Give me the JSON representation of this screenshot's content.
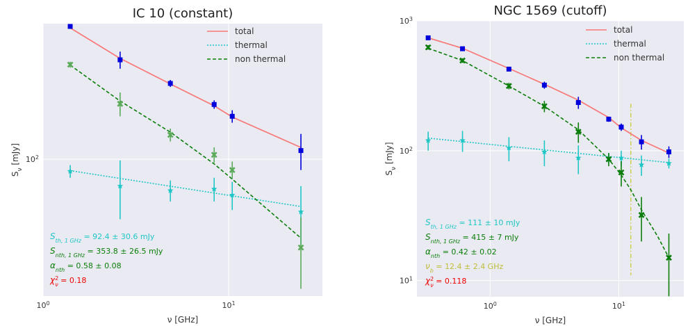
{
  "colors": {
    "panel_bg": "#eaeaf2",
    "grid": "#ffffff",
    "total": "#f87878",
    "thermal": "#1fc6c6",
    "nonthermal": "#0a7d0a",
    "nonthermal_light": "#5aaa5a",
    "total_points": "#0000dd",
    "break": "#cccc44",
    "chi": "#ee0000"
  },
  "chart_data": [
    {
      "type": "scatter",
      "title": "IC 10 (constant)",
      "xlabel": "ν [GHz]",
      "ylabel": "S",
      "ylabel_sub": "ν",
      "ylabel_unit": " [mJy]",
      "xscale": "log",
      "yscale": "log",
      "xlim": [
        1.0,
        32
      ],
      "ylim": [
        30,
        330
      ],
      "x_ticks": [
        {
          "v": 1,
          "base": "10",
          "exp": "0"
        },
        {
          "v": 10,
          "base": "10",
          "exp": "1"
        }
      ],
      "y_ticks": [
        {
          "v": 100,
          "base": "10",
          "exp": "2"
        }
      ],
      "grid": true,
      "legend": {
        "position": "top-right",
        "entries": [
          "total",
          "thermal",
          "non thermal"
        ]
      },
      "series": [
        {
          "name": "total",
          "kind": "line",
          "x": [
            1.4,
            2.6,
            4.85,
            8.35,
            10.45,
            24.5
          ],
          "y": [
            318,
            243,
            194,
            160,
            145,
            111
          ]
        },
        {
          "name": "thermal",
          "kind": "line",
          "x": [
            1.4,
            24.5
          ],
          "y": [
            90.5,
            66.0
          ]
        },
        {
          "name": "non thermal",
          "kind": "line",
          "x": [
            1.4,
            2.6,
            4.85,
            8.35,
            10.45,
            24.5
          ],
          "y": [
            229,
            167,
            127,
            96,
            84,
            50
          ]
        },
        {
          "name": "total points",
          "kind": "points",
          "x": [
            1.4,
            2.6,
            4.85,
            8.35,
            10.45,
            24.5
          ],
          "y": [
            322,
            240,
            195,
            162,
            146,
            108
          ],
          "err": [
            6,
            18,
            6,
            6,
            8,
            17
          ]
        },
        {
          "name": "thermal points",
          "kind": "points",
          "x": [
            1.4,
            2.6,
            4.85,
            8.35,
            10.45,
            24.5
          ],
          "y": [
            90,
            79,
            76,
            77,
            73,
            63
          ],
          "err": [
            5,
            20,
            7,
            8,
            9,
            16
          ]
        },
        {
          "name": "non thermal points",
          "kind": "points",
          "x": [
            1.4,
            2.6,
            4.85,
            8.35,
            10.45,
            24.5
          ],
          "y": [
            230,
            163,
            124,
            104,
            91,
            46
          ],
          "err": [
            6,
            17,
            7,
            7,
            7,
            14
          ]
        }
      ],
      "annotations": [
        {
          "sym": "S",
          "sub": "th, 1 GHz",
          "text": " = 92.4 ± 30.6 mJy",
          "color": "#1fc6c6"
        },
        {
          "sym": "S",
          "sub": "nth, 1 GHz",
          "text": " = 353.8 ± 26.5 mJy",
          "color": "#0a7d0a"
        },
        {
          "sym": "α",
          "sub": "nth",
          "text": " = 0.58 ± 0.08",
          "color": "#0a7d0a"
        },
        {
          "sym": "χ",
          "sup": "2",
          "sub": "ν",
          "text": " = 0.18",
          "color": "#ee0000"
        }
      ]
    },
    {
      "type": "scatter",
      "title": "NGC 1569 (cutoff)",
      "xlabel": "ν [GHz]",
      "ylabel": "S",
      "ylabel_sub": "ν",
      "ylabel_unit": " [mJy]",
      "xscale": "log",
      "yscale": "log",
      "xlim": [
        0.27,
        32
      ],
      "ylim": [
        7.5,
        1000
      ],
      "x_ticks": [
        {
          "v": 1,
          "base": "10",
          "exp": "0"
        },
        {
          "v": 10,
          "base": "10",
          "exp": "1"
        }
      ],
      "y_ticks": [
        {
          "v": 10,
          "base": "10",
          "exp": "1"
        },
        {
          "v": 100,
          "base": "10",
          "exp": "2"
        },
        {
          "v": 1000,
          "base": "10",
          "exp": "3"
        }
      ],
      "grid": true,
      "legend": {
        "position": "top-right",
        "entries": [
          "total",
          "thermal",
          "non thermal"
        ]
      },
      "break_frequency": 12.4,
      "break_ylim": [
        11,
        230
      ],
      "series": [
        {
          "name": "total",
          "kind": "line",
          "x": [
            0.33,
            0.61,
            1.4,
            2.64,
            4.85,
            8.35,
            10.45,
            15,
            24.5
          ],
          "y": [
            740,
            615,
            430,
            325,
            245,
            180,
            150,
            120,
            96
          ]
        },
        {
          "name": "thermal",
          "kind": "line",
          "x": [
            0.33,
            24.5
          ],
          "y": [
            125,
            81
          ]
        },
        {
          "name": "non thermal",
          "kind": "line",
          "x": [
            0.33,
            0.61,
            1.4,
            2.64,
            4.85,
            8.35,
            10.45,
            12.4,
            15,
            20,
            24.5
          ],
          "y": [
            615,
            495,
            315,
            220,
            145,
            86,
            65,
            50,
            35,
            22,
            15
          ]
        },
        {
          "name": "total points",
          "kind": "points",
          "x": [
            0.33,
            0.61,
            1.4,
            2.64,
            4.85,
            8.35,
            10.45,
            15,
            24.5
          ],
          "y": [
            740,
            610,
            425,
            320,
            235,
            175,
            152,
            117,
            98
          ],
          "err": [
            25,
            20,
            15,
            20,
            25,
            8,
            10,
            15,
            10
          ]
        },
        {
          "name": "thermal points",
          "kind": "points",
          "x": [
            0.33,
            0.61,
            1.4,
            2.64,
            4.85,
            8.35,
            10.45,
            15,
            24.5
          ],
          "y": [
            120,
            120,
            105,
            98,
            88,
            88,
            88,
            78,
            80
          ],
          "err": [
            20,
            22,
            22,
            22,
            22,
            8,
            12,
            14,
            7
          ]
        },
        {
          "name": "non thermal points",
          "kind": "points",
          "x": [
            0.33,
            0.61,
            1.4,
            2.64,
            4.85,
            8.35,
            10.45,
            15,
            24.5
          ],
          "y": [
            625,
            495,
            315,
            220,
            140,
            86,
            68,
            32,
            15
          ],
          "err": [
            25,
            20,
            18,
            22,
            25,
            10,
            15,
            12,
            8
          ]
        }
      ],
      "annotations": [
        {
          "sym": "S",
          "sub": "th, 1 GHz",
          "text": " = 111 ± 10 mJy",
          "color": "#1fc6c6"
        },
        {
          "sym": "S",
          "sub": "nth, 1 GHz",
          "text": " = 415 ± 7 mJy",
          "color": "#0a7d0a"
        },
        {
          "sym": "α",
          "sub": "nth",
          "text": " = 0.42 ± 0.02",
          "color": "#0a7d0a"
        },
        {
          "sym": "ν",
          "sub": "b",
          "text": " = 12.4 ± 2.4 GHz",
          "color": "#bdbd3a"
        },
        {
          "sym": "χ",
          "sup": "2",
          "sub": "ν",
          "text": " = 0.118",
          "color": "#ee0000"
        }
      ]
    }
  ]
}
